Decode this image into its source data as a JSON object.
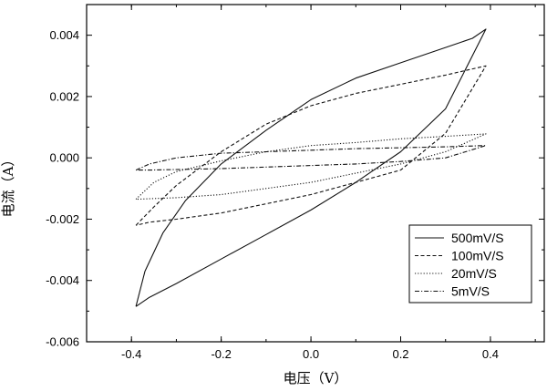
{
  "chart_data": {
    "type": "line",
    "xlabel": "电压（V）",
    "ylabel": "电流（A）",
    "xlim": [
      -0.5,
      0.52
    ],
    "ylim": [
      -0.006,
      0.005
    ],
    "x_ticks": [
      -0.4,
      -0.2,
      0.0,
      0.2,
      0.4
    ],
    "x_tick_labels": [
      "-0.4",
      "-0.2",
      "0.0",
      "0.2",
      "0.4"
    ],
    "y_ticks": [
      -0.006,
      -0.004,
      -0.002,
      0.0,
      0.002,
      0.004
    ],
    "y_tick_labels": [
      "-0.006",
      "-0.004",
      "-0.002",
      "0.000",
      "0.002",
      "0.004"
    ],
    "grid": false,
    "legend_position": "bottom-right",
    "series": [
      {
        "name": "500mV/S",
        "style": "solid",
        "x": [
          -0.39,
          -0.37,
          -0.33,
          -0.28,
          -0.2,
          -0.1,
          0.0,
          0.1,
          0.2,
          0.3,
          0.36,
          0.39,
          0.39,
          0.3,
          0.2,
          0.1,
          0.0,
          -0.1,
          -0.2,
          -0.3,
          -0.36,
          -0.39
        ],
        "y": [
          -0.00485,
          -0.0037,
          -0.00245,
          -0.0014,
          -0.0002,
          0.0009,
          0.0019,
          0.0026,
          0.0031,
          0.0036,
          0.0039,
          0.0042,
          0.0042,
          0.0016,
          0.0002,
          -0.0008,
          -0.0017,
          -0.0025,
          -0.0033,
          -0.0041,
          -0.00455,
          -0.00485
        ]
      },
      {
        "name": "100mV/S",
        "style": "dashed",
        "x": [
          -0.39,
          -0.35,
          -0.3,
          -0.2,
          -0.1,
          0.0,
          0.1,
          0.2,
          0.3,
          0.36,
          0.39,
          0.39,
          0.3,
          0.2,
          0.1,
          0.0,
          -0.1,
          -0.2,
          -0.3,
          -0.36,
          -0.39
        ],
        "y": [
          -0.0022,
          -0.0016,
          -0.0009,
          0.0002,
          0.0011,
          0.0017,
          0.0021,
          0.0024,
          0.0027,
          0.0029,
          0.003,
          0.003,
          0.0008,
          -0.0004,
          -0.0008,
          -0.0012,
          -0.0015,
          -0.0018,
          -0.002,
          -0.0021,
          -0.0022
        ]
      },
      {
        "name": "20mV/S",
        "style": "dotted",
        "x": [
          -0.39,
          -0.35,
          -0.3,
          -0.2,
          -0.1,
          0.0,
          0.1,
          0.2,
          0.3,
          0.39,
          0.39,
          0.3,
          0.2,
          0.1,
          0.0,
          -0.1,
          -0.2,
          -0.3,
          -0.39
        ],
        "y": [
          -0.00135,
          -0.0008,
          -0.00045,
          -0.0001,
          0.0002,
          0.0004,
          0.0005,
          0.00062,
          0.0007,
          0.00078,
          0.00078,
          0.0002,
          -0.0002,
          -0.0005,
          -0.0008,
          -0.001,
          -0.0012,
          -0.0013,
          -0.00135
        ]
      },
      {
        "name": "5mV/S",
        "style": "dashdot",
        "x": [
          -0.39,
          -0.36,
          -0.3,
          -0.2,
          -0.1,
          0.0,
          0.1,
          0.2,
          0.3,
          0.39,
          0.39,
          0.3,
          0.2,
          0.1,
          0.0,
          -0.1,
          -0.2,
          -0.3,
          -0.36,
          -0.39
        ],
        "y": [
          -0.0004,
          -0.0002,
          0.0,
          0.00015,
          0.0002,
          0.00025,
          0.0003,
          0.00033,
          0.00036,
          0.0004,
          0.0004,
          0.0,
          -0.00012,
          -0.0002,
          -0.00025,
          -0.0003,
          -0.00035,
          -0.00038,
          -0.0004,
          -0.0004
        ]
      }
    ]
  }
}
